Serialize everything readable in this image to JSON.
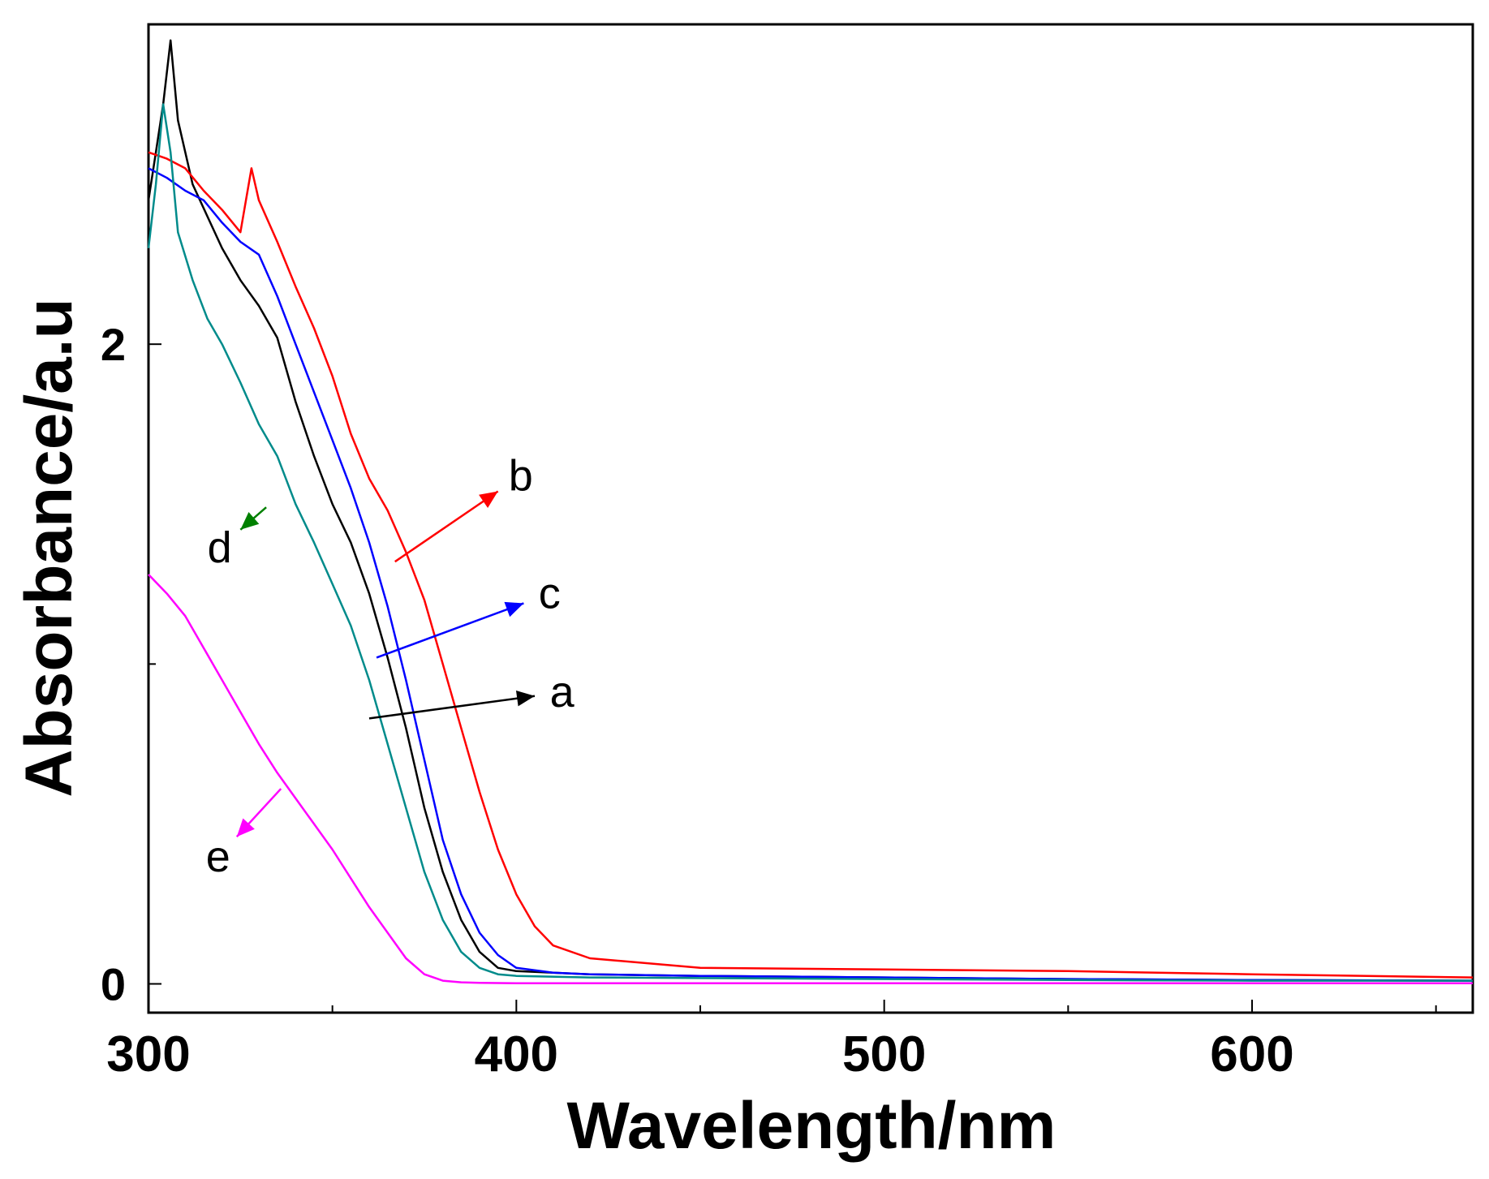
{
  "chart_data": {
    "type": "line",
    "title": "",
    "xlabel": "Wavelength/nm",
    "ylabel": "Absorbance/a.u",
    "xlim": [
      300,
      660
    ],
    "ylim": [
      -0.09,
      3.0
    ],
    "x_ticks": [
      300,
      400,
      500,
      600
    ],
    "x_minor_ticks": [
      350,
      450,
      550,
      650
    ],
    "y_ticks": [
      0,
      2
    ],
    "y_minor_ticks": [
      1
    ],
    "grid": false,
    "series": [
      {
        "name": "a",
        "color": "#000000",
        "x": [
          300,
          302,
          304,
          306,
          308,
          312,
          316,
          320,
          325,
          330,
          335,
          340,
          345,
          350,
          355,
          360,
          365,
          370,
          375,
          380,
          385,
          390,
          395,
          400,
          420,
          450,
          500,
          550,
          600,
          660
        ],
        "y": [
          2.45,
          2.6,
          2.75,
          2.95,
          2.7,
          2.5,
          2.4,
          2.3,
          2.2,
          2.12,
          2.02,
          1.82,
          1.65,
          1.5,
          1.38,
          1.22,
          1.02,
          0.8,
          0.55,
          0.35,
          0.2,
          0.1,
          0.05,
          0.04,
          0.03,
          0.025,
          0.02,
          0.015,
          0.012,
          0.01
        ]
      },
      {
        "name": "b",
        "color": "#ff0000",
        "x": [
          300,
          305,
          310,
          315,
          320,
          325,
          328,
          330,
          335,
          340,
          345,
          350,
          355,
          360,
          365,
          370,
          375,
          380,
          385,
          390,
          395,
          400,
          405,
          410,
          420,
          450,
          500,
          550,
          600,
          660
        ],
        "y": [
          2.6,
          2.58,
          2.55,
          2.48,
          2.42,
          2.35,
          2.55,
          2.45,
          2.32,
          2.18,
          2.05,
          1.9,
          1.72,
          1.58,
          1.48,
          1.35,
          1.2,
          1.0,
          0.8,
          0.6,
          0.42,
          0.28,
          0.18,
          0.12,
          0.08,
          0.05,
          0.045,
          0.04,
          0.03,
          0.02
        ]
      },
      {
        "name": "c",
        "color": "#0000ff",
        "x": [
          300,
          305,
          310,
          315,
          320,
          325,
          330,
          335,
          340,
          345,
          350,
          355,
          360,
          365,
          370,
          375,
          380,
          385,
          390,
          395,
          400,
          410,
          420,
          450,
          500,
          550,
          600,
          660
        ],
        "y": [
          2.55,
          2.52,
          2.48,
          2.45,
          2.38,
          2.32,
          2.28,
          2.15,
          2.0,
          1.85,
          1.7,
          1.55,
          1.38,
          1.18,
          0.95,
          0.7,
          0.45,
          0.28,
          0.16,
          0.09,
          0.05,
          0.035,
          0.03,
          0.025,
          0.02,
          0.015,
          0.012,
          0.01
        ]
      },
      {
        "name": "d",
        "color": "#008b8b",
        "x": [
          300,
          302,
          304,
          306,
          308,
          312,
          316,
          320,
          325,
          330,
          335,
          340,
          345,
          350,
          355,
          360,
          365,
          370,
          375,
          380,
          385,
          390,
          395,
          400,
          420,
          450,
          500,
          550,
          600,
          660
        ],
        "y": [
          2.3,
          2.5,
          2.75,
          2.6,
          2.35,
          2.2,
          2.08,
          2.0,
          1.88,
          1.75,
          1.65,
          1.5,
          1.38,
          1.25,
          1.12,
          0.95,
          0.75,
          0.55,
          0.35,
          0.2,
          0.1,
          0.05,
          0.03,
          0.025,
          0.02,
          0.018,
          0.015,
          0.012,
          0.01,
          0.01
        ]
      },
      {
        "name": "e",
        "color": "#ff00ff",
        "x": [
          300,
          305,
          310,
          315,
          320,
          325,
          330,
          335,
          340,
          345,
          350,
          355,
          360,
          365,
          370,
          375,
          380,
          385,
          390,
          400,
          450,
          500,
          550,
          600,
          660
        ],
        "y": [
          1.28,
          1.22,
          1.15,
          1.05,
          0.95,
          0.85,
          0.75,
          0.66,
          0.58,
          0.5,
          0.42,
          0.33,
          0.24,
          0.16,
          0.08,
          0.03,
          0.01,
          0.005,
          0.003,
          0.002,
          0.002,
          0.002,
          0.002,
          0.002,
          0.002
        ]
      }
    ],
    "annotations": [
      {
        "label": "a",
        "color": "#000000",
        "x_from": 360,
        "y_from": 0.83,
        "x_to": 405,
        "y_to": 0.9
      },
      {
        "label": "b",
        "color": "#ff0000",
        "x_from": 367,
        "y_from": 1.32,
        "x_to": 395,
        "y_to": 1.54
      },
      {
        "label": "c",
        "color": "#0000ff",
        "x_from": 362,
        "y_from": 1.02,
        "x_to": 402,
        "y_to": 1.19
      },
      {
        "label": "d",
        "color": "#008000",
        "x_from": 332,
        "y_from": 1.49,
        "x_to": 325,
        "y_to": 1.42
      },
      {
        "label": "e",
        "color": "#ff00ff",
        "x_from": 336,
        "y_from": 0.61,
        "x_to": 324,
        "y_to": 0.46
      }
    ]
  }
}
